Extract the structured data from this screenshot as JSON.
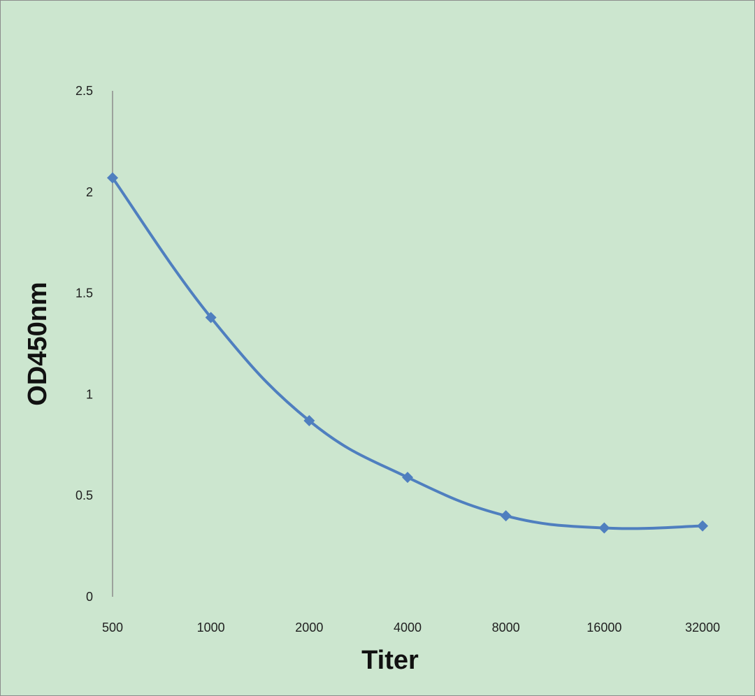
{
  "chart_data": {
    "type": "line",
    "title": "",
    "xlabel": "Titer",
    "ylabel": "OD450nm",
    "categories": [
      "500",
      "1000",
      "2000",
      "4000",
      "8000",
      "16000",
      "32000"
    ],
    "series": [
      {
        "values": [
          2.07,
          1.38,
          0.87,
          0.59,
          0.4,
          0.34,
          0.35
        ]
      }
    ],
    "ylim": [
      0,
      2.5
    ],
    "yticks": [
      "0",
      "0.5",
      "1",
      "1.5",
      "2",
      "2.5"
    ],
    "grid": false,
    "legend": "none",
    "marker": "diamond",
    "smooth": true
  },
  "colors": {
    "background": "#cce6cf",
    "series": "#4f7fbf",
    "axis": "#8c8c8c"
  }
}
